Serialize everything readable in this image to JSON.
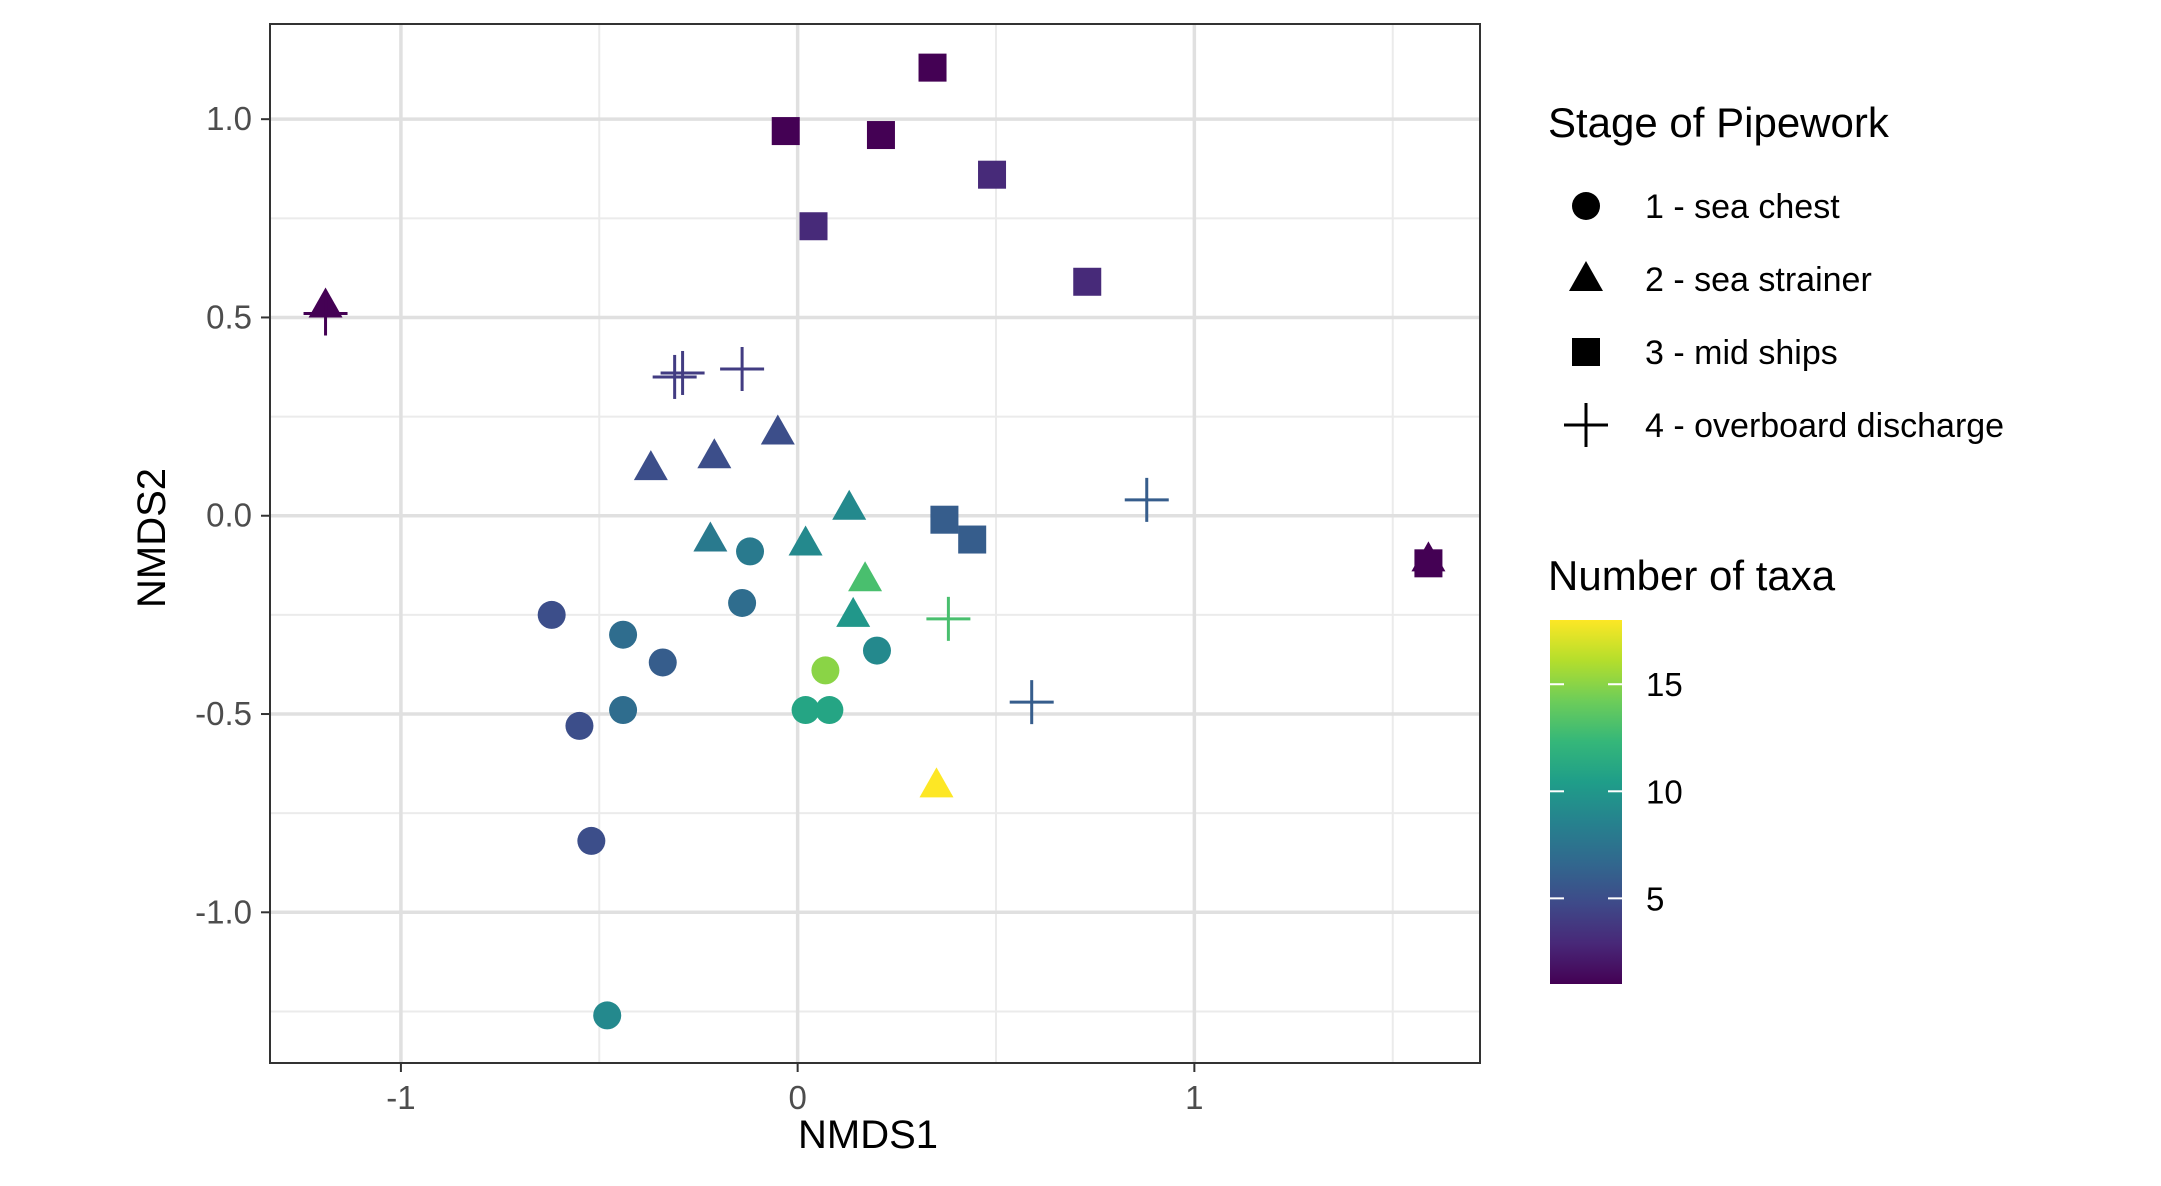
{
  "chart_data": {
    "type": "scatter",
    "xlabel": "NMDS1",
    "ylabel": "NMDS2",
    "xlim": [
      -1.33,
      1.72
    ],
    "ylim": [
      -1.38,
      1.24
    ],
    "x_ticks": [
      -1,
      0,
      1
    ],
    "x_tick_labels": [
      "-1",
      "0",
      "1"
    ],
    "y_ticks": [
      -1.0,
      -0.5,
      0.0,
      0.5,
      1.0
    ],
    "y_tick_labels": [
      "-1.0",
      "-0.5",
      "0.0",
      "0.5",
      "1.0"
    ],
    "grid": true,
    "legend_position": "right",
    "legend_shape": {
      "title": "Stage of Pipework",
      "entries": [
        {
          "label": "1 - sea chest",
          "shape": "circle"
        },
        {
          "label": "2 - sea strainer",
          "shape": "triangle"
        },
        {
          "label": "3 - mid ships",
          "shape": "square"
        },
        {
          "label": "4 - overboard discharge",
          "shape": "plus"
        }
      ]
    },
    "legend_color": {
      "title": "Number of taxa",
      "scale": "viridis",
      "min": 1,
      "max": 18,
      "ticks": [
        5,
        10,
        15
      ],
      "tick_labels": [
        "5",
        "10",
        "15"
      ],
      "colors": [
        "#440154",
        "#482878",
        "#3E4A89",
        "#31688E",
        "#26828E",
        "#1F9E89",
        "#35B779",
        "#6DCD59",
        "#B4DE2C",
        "#FDE725"
      ]
    },
    "series": [
      {
        "shape": "circle",
        "points": [
          {
            "x": -0.62,
            "y": -0.25,
            "taxa": 5
          },
          {
            "x": -0.55,
            "y": -0.53,
            "taxa": 5
          },
          {
            "x": -0.52,
            "y": -0.82,
            "taxa": 5
          },
          {
            "x": -0.44,
            "y": -0.3,
            "taxa": 7
          },
          {
            "x": -0.44,
            "y": -0.49,
            "taxa": 7
          },
          {
            "x": -0.34,
            "y": -0.37,
            "taxa": 6
          },
          {
            "x": -0.14,
            "y": -0.22,
            "taxa": 7
          },
          {
            "x": -0.12,
            "y": -0.09,
            "taxa": 8
          },
          {
            "x": -0.48,
            "y": -1.26,
            "taxa": 9
          },
          {
            "x": 0.2,
            "y": -0.34,
            "taxa": 9
          },
          {
            "x": 0.02,
            "y": -0.49,
            "taxa": 11
          },
          {
            "x": 0.08,
            "y": -0.49,
            "taxa": 11
          },
          {
            "x": 0.07,
            "y": -0.39,
            "taxa": 15
          }
        ]
      },
      {
        "shape": "triangle",
        "points": [
          {
            "x": -1.19,
            "y": 0.53,
            "taxa": 1
          },
          {
            "x": -0.37,
            "y": 0.12,
            "taxa": 5
          },
          {
            "x": -0.21,
            "y": 0.15,
            "taxa": 5
          },
          {
            "x": -0.05,
            "y": 0.21,
            "taxa": 5
          },
          {
            "x": -0.22,
            "y": -0.06,
            "taxa": 8
          },
          {
            "x": 0.02,
            "y": -0.07,
            "taxa": 9
          },
          {
            "x": 0.13,
            "y": 0.02,
            "taxa": 9
          },
          {
            "x": 0.14,
            "y": -0.25,
            "taxa": 10
          },
          {
            "x": 0.17,
            "y": -0.16,
            "taxa": 13
          },
          {
            "x": 0.35,
            "y": -0.68,
            "taxa": 18
          },
          {
            "x": 1.59,
            "y": -0.11,
            "taxa": 1
          }
        ]
      },
      {
        "shape": "square",
        "points": [
          {
            "x": 0.34,
            "y": 1.13,
            "taxa": 1
          },
          {
            "x": -0.03,
            "y": 0.97,
            "taxa": 1
          },
          {
            "x": 0.21,
            "y": 0.96,
            "taxa": 1
          },
          {
            "x": 0.49,
            "y": 0.86,
            "taxa": 3
          },
          {
            "x": 0.04,
            "y": 0.73,
            "taxa": 3
          },
          {
            "x": 0.73,
            "y": 0.59,
            "taxa": 3
          },
          {
            "x": 0.37,
            "y": -0.01,
            "taxa": 6
          },
          {
            "x": 0.44,
            "y": -0.06,
            "taxa": 6
          },
          {
            "x": 1.59,
            "y": -0.12,
            "taxa": 1
          }
        ]
      },
      {
        "shape": "plus",
        "points": [
          {
            "x": -1.19,
            "y": 0.51,
            "taxa": 1
          },
          {
            "x": -0.31,
            "y": 0.35,
            "taxa": 4
          },
          {
            "x": -0.29,
            "y": 0.36,
            "taxa": 4
          },
          {
            "x": -0.14,
            "y": 0.37,
            "taxa": 4
          },
          {
            "x": 0.88,
            "y": 0.04,
            "taxa": 6
          },
          {
            "x": 0.59,
            "y": -0.47,
            "taxa": 6
          },
          {
            "x": 0.38,
            "y": -0.26,
            "taxa": 13
          }
        ]
      }
    ]
  }
}
